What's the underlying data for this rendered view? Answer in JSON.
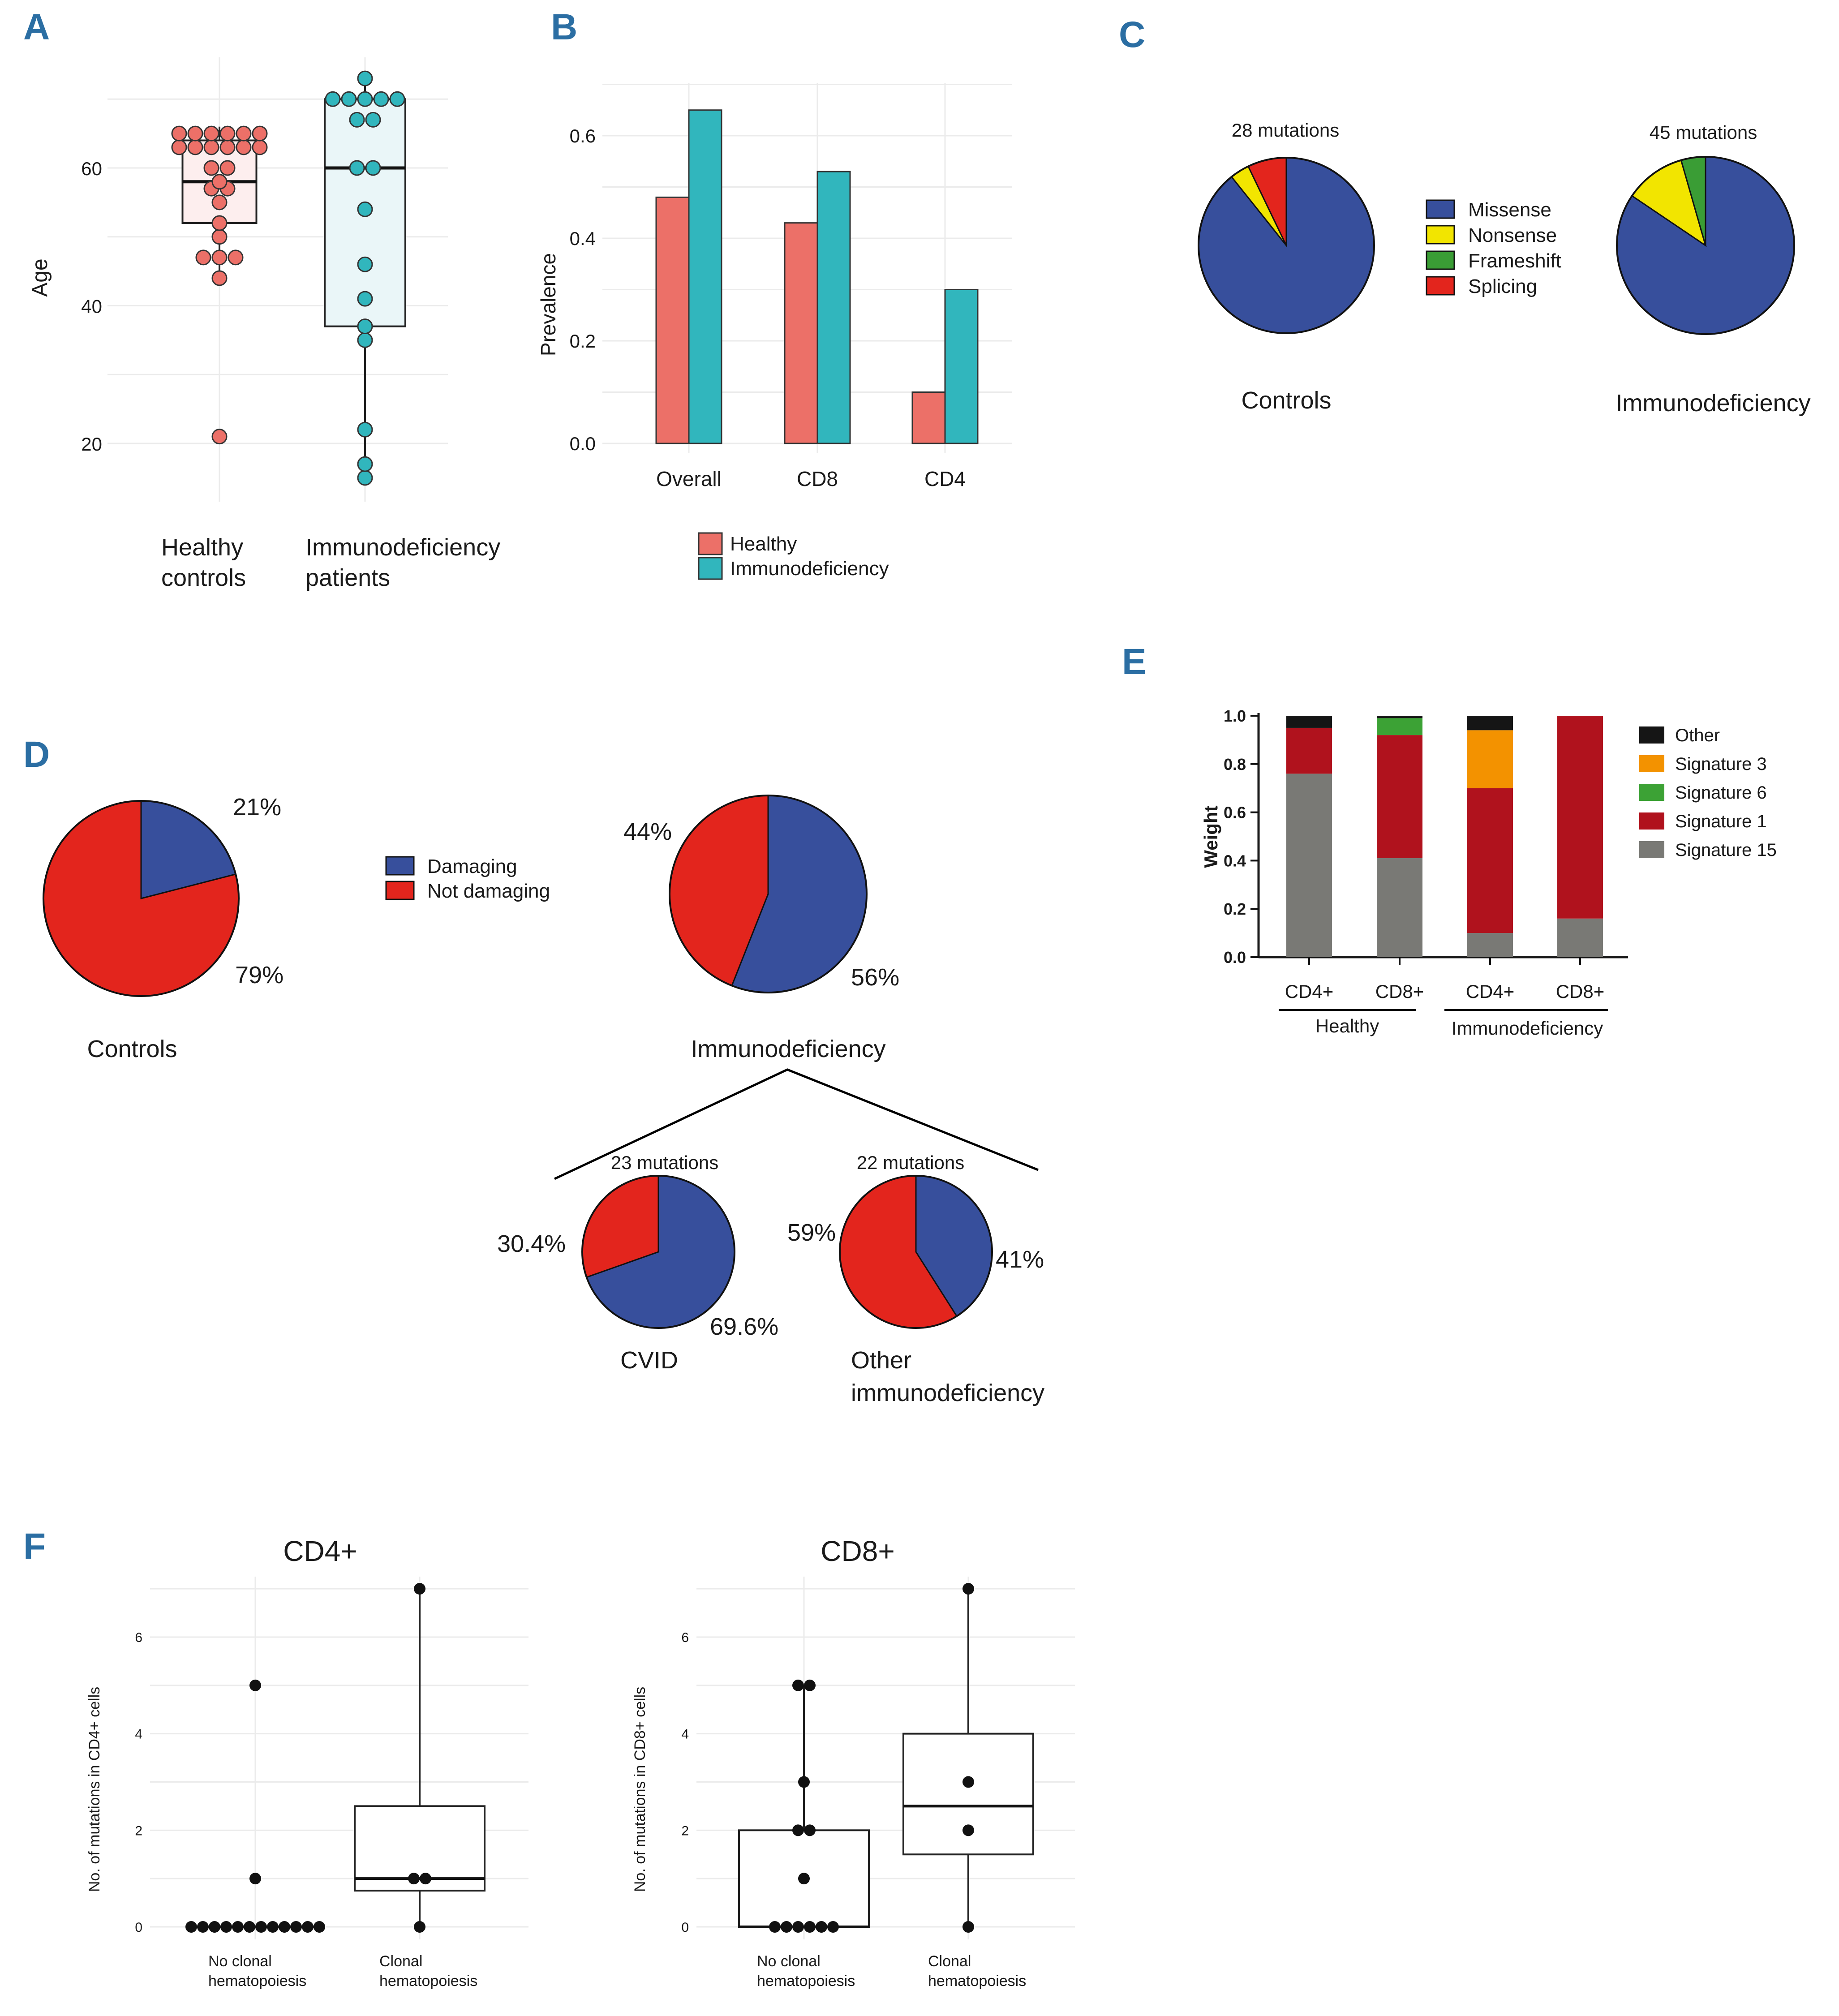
{
  "panel_labels": [
    "A",
    "B",
    "C",
    "D",
    "E",
    "F"
  ],
  "colors": {
    "healthy": "#ec7068",
    "immuno": "#31b6bd",
    "missense": "#374f9c",
    "nonsense": "#f2e500",
    "frameshift": "#3a9d35",
    "splicing": "#e3251d",
    "damaging": "#374f9c",
    "not_damaging": "#e3251d",
    "sig_other": "#151515",
    "sig3": "#f39200",
    "sig6": "#3ca235",
    "sig1": "#b0121d",
    "sig15": "#797975"
  },
  "chart_data": [
    {
      "panel": "A",
      "type": "box",
      "ylabel": "Age",
      "ylim": [
        15,
        75
      ],
      "yticks": [
        20,
        40,
        60
      ],
      "groups": [
        {
          "label_lines": [
            "Healthy",
            "controls"
          ],
          "q1": 52,
          "median": 58,
          "q3": 64,
          "whisker_low": 44,
          "whisker_high": 66,
          "points": [
            21,
            44,
            47,
            47,
            47,
            50,
            52,
            55,
            57,
            57,
            58,
            60,
            60,
            63,
            63,
            63,
            63,
            63,
            63,
            65,
            65,
            65,
            65,
            65,
            65
          ]
        },
        {
          "label_lines": [
            "Immunodeficiency",
            "patients"
          ],
          "q1": 37,
          "median": 60,
          "q3": 70,
          "whisker_low": 15,
          "whisker_high": 73,
          "points": [
            15,
            17,
            22,
            35,
            37,
            41,
            46,
            54,
            60,
            60,
            67,
            67,
            70,
            70,
            70,
            70,
            70,
            73
          ]
        }
      ]
    },
    {
      "panel": "B",
      "type": "bar",
      "ylabel": "Prevalence",
      "ylim": [
        0,
        0.7
      ],
      "yticks": [
        "0.0",
        "0.2",
        "0.4",
        "0.6"
      ],
      "categories": [
        "Overall",
        "CD8",
        "CD4"
      ],
      "series": [
        {
          "name": "Healthy",
          "values": [
            0.48,
            0.43,
            0.1
          ]
        },
        {
          "name": "Immunodeficiency",
          "values": [
            0.65,
            0.53,
            0.3
          ]
        }
      ]
    },
    {
      "panel": "C",
      "type": "pie",
      "legend": [
        "Missense",
        "Nonsense",
        "Frameshift",
        "Splicing"
      ],
      "pies": [
        {
          "title": "28 mutations",
          "label": "Controls",
          "slices": {
            "Missense": 25,
            "Nonsense": 1,
            "Frameshift": 0,
            "Splicing": 2
          }
        },
        {
          "title": "45 mutations",
          "label": "Immunodeficiency",
          "slices": {
            "Missense": 38,
            "Nonsense": 5,
            "Frameshift": 2,
            "Splicing": 0
          }
        }
      ]
    },
    {
      "panel": "D",
      "type": "pie",
      "legend": [
        "Damaging",
        "Not damaging"
      ],
      "pies": [
        {
          "label": "Controls",
          "title": "",
          "damaging_pct": 21,
          "labels": [
            "21%",
            "79%"
          ]
        },
        {
          "label": "Immunodeficiency",
          "title": "",
          "damaging_pct": 56,
          "labels": [
            "56%",
            "44%"
          ]
        },
        {
          "label": "CVID",
          "title": "23 mutations",
          "damaging_pct": 69.6,
          "labels": [
            "69.6%",
            "30.4%"
          ]
        },
        {
          "label": "Other immunodeficiency",
          "title": "22 mutations",
          "damaging_pct": 41,
          "labels": [
            "41%",
            "59%"
          ]
        }
      ]
    },
    {
      "panel": "E",
      "type": "stacked_bar",
      "ylabel": "Weight",
      "ylim": [
        0,
        1
      ],
      "yticks": [
        "0.0",
        "0.2",
        "0.4",
        "0.6",
        "0.8",
        "1.0"
      ],
      "categories": [
        "CD4+",
        "CD8+",
        "CD4+",
        "CD8+"
      ],
      "group_labels": [
        "Healthy",
        "Immunodeficiency"
      ],
      "series": [
        {
          "name": "Signature 15",
          "values": [
            0.76,
            0.41,
            0.1,
            0.16
          ]
        },
        {
          "name": "Signature 1",
          "values": [
            0.19,
            0.51,
            0.6,
            0.84
          ]
        },
        {
          "name": "Signature 6",
          "values": [
            0,
            0.07,
            0,
            0
          ]
        },
        {
          "name": "Signature 3",
          "values": [
            0,
            0,
            0.24,
            0
          ]
        },
        {
          "name": "Other",
          "values": [
            0.05,
            0.01,
            0.06,
            0
          ]
        }
      ],
      "legend_order": [
        "Other",
        "Signature 3",
        "Signature 6",
        "Signature 1",
        "Signature 15"
      ]
    },
    {
      "panel": "F",
      "type": "box",
      "ylim": [
        0,
        7.5
      ],
      "yticks": [
        0,
        2,
        4,
        6
      ],
      "plots": [
        {
          "title": "CD4+",
          "ylabel": "No. of mutations in CD4+ cells",
          "groups": [
            {
              "label_lines": [
                "No clonal",
                "hematopoiesis"
              ],
              "q1": 0,
              "median": 0,
              "q3": 0,
              "whisker_low": 0,
              "whisker_high": 0,
              "points": [
                0,
                0,
                0,
                0,
                0,
                0,
                0,
                0,
                0,
                0,
                0,
                0,
                1,
                5
              ]
            },
            {
              "label_lines": [
                "Clonal",
                "hematopoiesis"
              ],
              "q1": 0.75,
              "median": 1,
              "q3": 2.5,
              "whisker_low": 0,
              "whisker_high": 7,
              "points": [
                0,
                1,
                1,
                7
              ]
            }
          ]
        },
        {
          "title": "CD8+",
          "ylabel": "No. of mutations in CD8+ cells",
          "groups": [
            {
              "label_lines": [
                "No clonal",
                "hematopoiesis"
              ],
              "q1": 0,
              "median": 0,
              "q3": 2,
              "whisker_low": 0,
              "whisker_high": 5,
              "points": [
                0,
                0,
                0,
                0,
                0,
                0,
                1,
                2,
                2,
                3,
                5,
                5
              ]
            },
            {
              "label_lines": [
                "Clonal",
                "hematopoiesis"
              ],
              "q1": 1.5,
              "median": 2.5,
              "q3": 4,
              "whisker_low": 0,
              "whisker_high": 7,
              "points": [
                0,
                2,
                3,
                7
              ]
            }
          ]
        }
      ]
    }
  ]
}
